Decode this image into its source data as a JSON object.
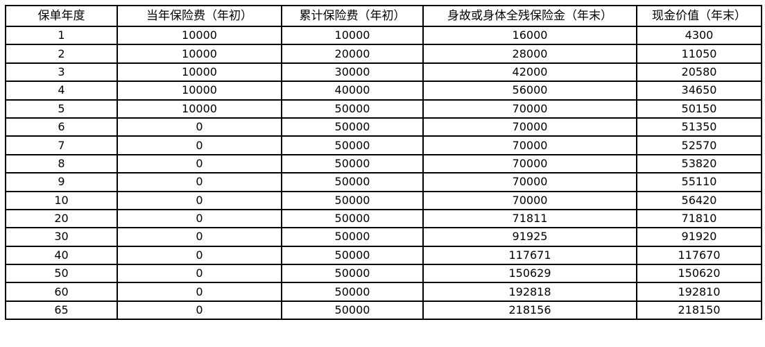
{
  "table": {
    "headers": [
      "保单年度",
      "当年保险费（年初）",
      "累计保险费（年初）",
      "身故或身体全残保险金（年末）",
      "现金价值（年末）"
    ],
    "rows": [
      [
        "1",
        "10000",
        "10000",
        "16000",
        "4300"
      ],
      [
        "2",
        "10000",
        "20000",
        "28000",
        "11050"
      ],
      [
        "3",
        "10000",
        "30000",
        "42000",
        "20580"
      ],
      [
        "4",
        "10000",
        "40000",
        "56000",
        "34650"
      ],
      [
        "5",
        "10000",
        "50000",
        "70000",
        "50150"
      ],
      [
        "6",
        "0",
        "50000",
        "70000",
        "51350"
      ],
      [
        "7",
        "0",
        "50000",
        "70000",
        "52570"
      ],
      [
        "8",
        "0",
        "50000",
        "70000",
        "53820"
      ],
      [
        "9",
        "0",
        "50000",
        "70000",
        "55110"
      ],
      [
        "10",
        "0",
        "50000",
        "70000",
        "56420"
      ],
      [
        "20",
        "0",
        "50000",
        "71811",
        "71810"
      ],
      [
        "30",
        "0",
        "50000",
        "91925",
        "91920"
      ],
      [
        "40",
        "0",
        "50000",
        "117671",
        "117670"
      ],
      [
        "50",
        "0",
        "50000",
        "150629",
        "150620"
      ],
      [
        "60",
        "0",
        "50000",
        "192818",
        "192810"
      ],
      [
        "65",
        "0",
        "50000",
        "218156",
        "218150"
      ]
    ]
  }
}
